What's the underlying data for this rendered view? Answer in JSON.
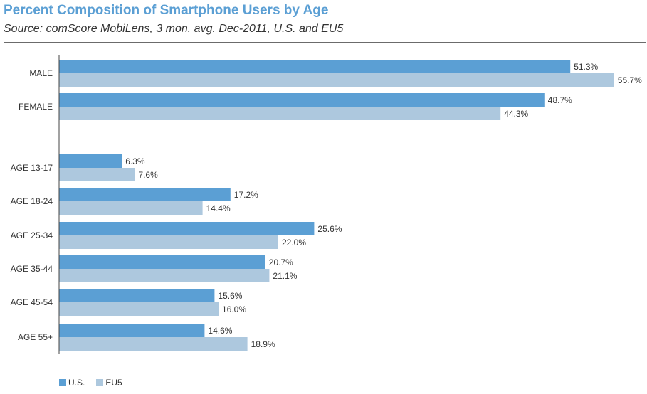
{
  "chart_data": {
    "type": "bar",
    "orientation": "horizontal",
    "title": "Percent Composition of Smartphone Users by Age",
    "subtitle": "Source: comScore MobiLens, 3 mon. avg. Dec-2011, U.S. and EU5",
    "categories": [
      "MALE",
      "FEMALE",
      "AGE 13-17",
      "AGE 18-24",
      "AGE 25-34",
      "AGE 35-44",
      "AGE 45-54",
      "AGE 55+"
    ],
    "series": [
      {
        "name": "U.S.",
        "values": [
          51.3,
          48.7,
          6.3,
          17.2,
          25.6,
          20.7,
          15.6,
          14.6
        ],
        "labels": [
          "51.3%",
          "48.7%",
          "6.3%",
          "17.2%",
          "25.6%",
          "20.7%",
          "15.6%",
          "14.6%"
        ],
        "color": "#5b9fd4"
      },
      {
        "name": "EU5",
        "values": [
          55.7,
          44.3,
          7.6,
          14.4,
          22.0,
          21.1,
          16.0,
          18.9
        ],
        "labels": [
          "55.7%",
          "44.3%",
          "7.6%",
          "14.4%",
          "22.0%",
          "21.1%",
          "16.0%",
          "18.9%"
        ],
        "color": "#adc8de"
      }
    ],
    "xlim": [
      0,
      60
    ],
    "grid": false,
    "legend_position": "bottom-left"
  },
  "colors": {
    "title": "#5b9fd4",
    "axis": "#444444",
    "text": "#333333"
  }
}
